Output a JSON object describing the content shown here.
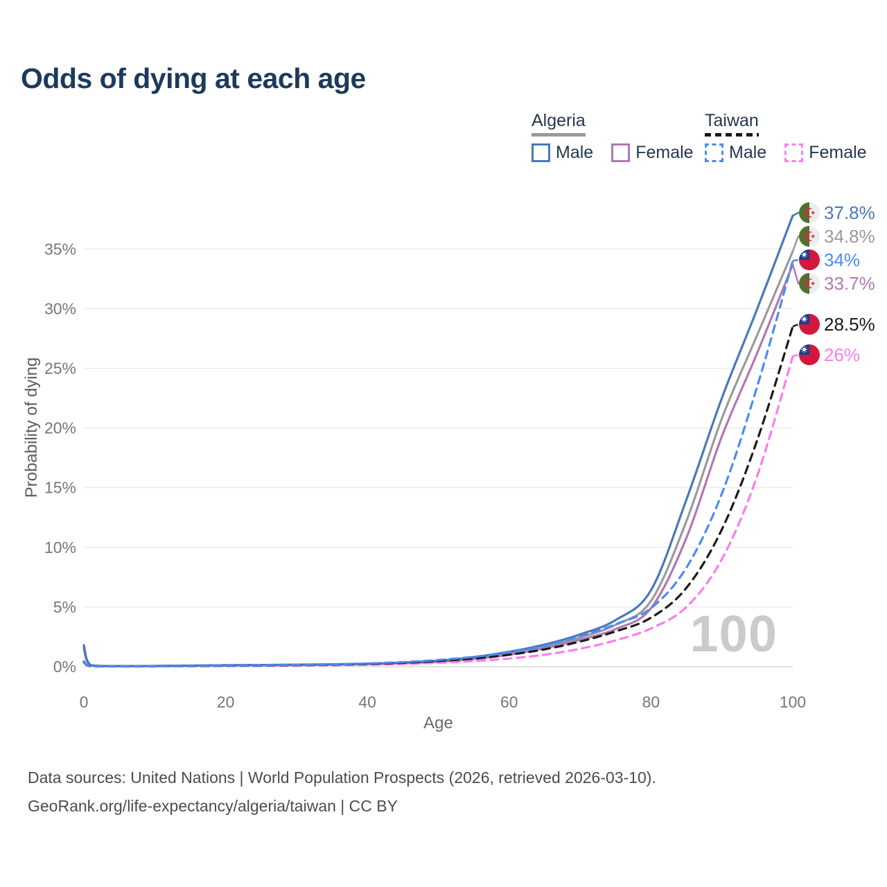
{
  "title": "Odds of dying at each age",
  "legend": {
    "groups": [
      {
        "name": "Algeria",
        "line_color": "#9a9a9a",
        "line_style": "solid",
        "items": [
          {
            "label": "Male",
            "color": "#4878b8",
            "style": "solid"
          },
          {
            "label": "Female",
            "color": "#b277b2",
            "style": "solid"
          }
        ]
      },
      {
        "name": "Taiwan",
        "line_color": "#1a1a1a",
        "line_style": "dashed",
        "items": [
          {
            "label": "Male",
            "color": "#4b8bf5",
            "style": "dashed"
          },
          {
            "label": "Female",
            "color": "#fc7cf0",
            "style": "dashed"
          }
        ]
      }
    ]
  },
  "chart_data": {
    "type": "line",
    "title": "Odds of dying at each age",
    "xlabel": "Age",
    "ylabel": "Probability of dying",
    "xlim": [
      0,
      100
    ],
    "ylim": [
      0,
      38
    ],
    "grid": "horizontal",
    "legend_position": "top-right",
    "watermark_age": "100",
    "xticks": [
      {
        "value": 0,
        "label": "0"
      },
      {
        "value": 20,
        "label": "20"
      },
      {
        "value": 40,
        "label": "40"
      },
      {
        "value": 60,
        "label": "60"
      },
      {
        "value": 80,
        "label": "80"
      },
      {
        "value": 100,
        "label": "100"
      }
    ],
    "yticks": [
      {
        "value": 0,
        "label": "0%"
      },
      {
        "value": 5,
        "label": "5%"
      },
      {
        "value": 10,
        "label": "10%"
      },
      {
        "value": 15,
        "label": "15%"
      },
      {
        "value": 20,
        "label": "20%"
      },
      {
        "value": 25,
        "label": "25%"
      },
      {
        "value": 30,
        "label": "30%"
      },
      {
        "value": 35,
        "label": "35%"
      }
    ],
    "x": [
      0,
      1,
      5,
      10,
      15,
      20,
      25,
      30,
      35,
      40,
      45,
      50,
      55,
      60,
      65,
      70,
      75,
      80,
      85,
      90,
      95,
      100
    ],
    "series": [
      {
        "name": "Algeria Male",
        "country": "algeria",
        "line": "solid",
        "color": "#4878b8",
        "end_label": "37.8%",
        "values": [
          1.8,
          0.12,
          0.05,
          0.06,
          0.09,
          0.12,
          0.14,
          0.17,
          0.2,
          0.25,
          0.34,
          0.5,
          0.8,
          1.25,
          1.85,
          2.7,
          3.9,
          6.4,
          14.0,
          22.5,
          30.0,
          37.8
        ]
      },
      {
        "name": "Algeria",
        "country": "algeria",
        "line": "solid",
        "color": "#9a9a9a",
        "end_label": "34.8%",
        "values": [
          1.65,
          0.11,
          0.045,
          0.055,
          0.08,
          0.11,
          0.13,
          0.15,
          0.18,
          0.23,
          0.31,
          0.45,
          0.72,
          1.12,
          1.7,
          2.45,
          3.5,
          5.5,
          12.2,
          20.8,
          27.8,
          34.8
        ]
      },
      {
        "name": "Taiwan Male",
        "country": "taiwan",
        "line": "dashed",
        "color": "#4b8bf5",
        "end_label": "34%",
        "values": [
          0.45,
          0.03,
          0.02,
          0.03,
          0.06,
          0.1,
          0.12,
          0.15,
          0.19,
          0.27,
          0.38,
          0.56,
          0.82,
          1.2,
          1.75,
          2.55,
          3.55,
          4.9,
          8.3,
          14.5,
          23.5,
          34.0
        ]
      },
      {
        "name": "Algeria Female",
        "country": "algeria",
        "line": "solid",
        "color": "#b277b2",
        "end_label": "33.7%",
        "values": [
          1.5,
          0.1,
          0.04,
          0.05,
          0.07,
          0.1,
          0.12,
          0.14,
          0.17,
          0.21,
          0.28,
          0.4,
          0.63,
          1.0,
          1.55,
          2.25,
          3.15,
          4.9,
          10.8,
          19.3,
          26.3,
          33.7
        ]
      },
      {
        "name": "Taiwan",
        "country": "taiwan",
        "line": "dashed",
        "color": "#1a1a1a",
        "end_label": "28.5%",
        "values": [
          0.4,
          0.025,
          0.018,
          0.025,
          0.05,
          0.08,
          0.1,
          0.13,
          0.17,
          0.23,
          0.32,
          0.47,
          0.68,
          1.0,
          1.45,
          2.1,
          2.95,
          4.1,
          6.6,
          11.5,
          19.0,
          28.5
        ]
      },
      {
        "name": "Taiwan Female",
        "country": "taiwan",
        "line": "dashed",
        "color": "#fc7cf0",
        "end_label": "26%",
        "values": [
          0.35,
          0.02,
          0.015,
          0.02,
          0.035,
          0.05,
          0.07,
          0.09,
          0.12,
          0.16,
          0.22,
          0.32,
          0.47,
          0.68,
          1.0,
          1.5,
          2.2,
          3.2,
          5.0,
          9.0,
          16.0,
          26.0
        ]
      }
    ]
  },
  "footer": {
    "line1": "Data sources: United Nations | World Population Prospects (2026, retrieved 2026-03-10).",
    "line2": "GeoRank.org/life-expectancy/algeria/taiwan | CC BY"
  }
}
